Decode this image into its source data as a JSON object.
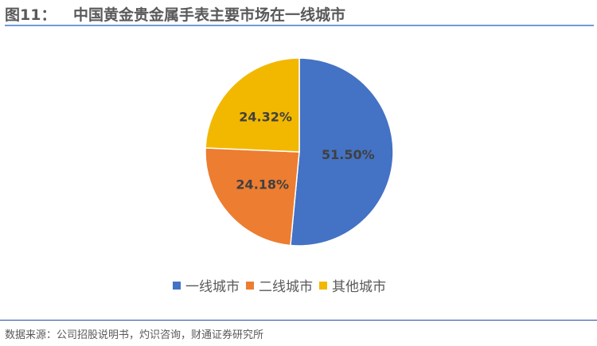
{
  "header": {
    "figure_number": "图11：",
    "title": "中国黄金贵金属手表主要市场在一线城市"
  },
  "footer": {
    "source": "数据来源：公司招股说明书，灼识咨询，财通证券研究所"
  },
  "chart_data": {
    "type": "pie",
    "title": "中国黄金贵金属手表主要市场在一线城市",
    "categories": [
      "一线城市",
      "二线城市",
      "其他城市"
    ],
    "values": [
      51.5,
      24.18,
      24.32
    ],
    "data_labels": [
      "51.50%",
      "24.18%",
      "24.32%"
    ],
    "colors": [
      "#4472c4",
      "#ed7d31",
      "#f2b800"
    ],
    "start_angle": "12 o'clock, clockwise",
    "legend_position": "bottom"
  }
}
